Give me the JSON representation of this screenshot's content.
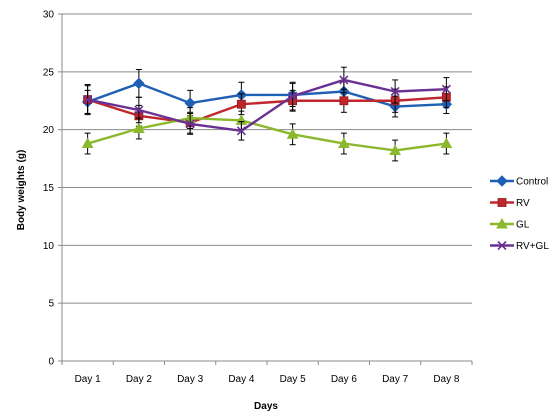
{
  "chart_data": {
    "type": "line",
    "ylabel": "Body weights (g)",
    "xlabel": "Days",
    "categories": [
      "Day 1",
      "Day 2",
      "Day 3",
      "Day 4",
      "Day 5",
      "Day 6",
      "Day 7",
      "Day 8"
    ],
    "ylim": [
      0,
      30
    ],
    "yticks": [
      0,
      5,
      10,
      15,
      20,
      25,
      30
    ],
    "grid": true,
    "legend_position": "right",
    "series": [
      {
        "name": "Control",
        "color": "#1f5fb4",
        "marker": "diamond",
        "values": [
          22.4,
          24.0,
          22.3,
          23.0,
          23.0,
          23.3,
          22.0,
          22.2
        ],
        "errors": [
          1.0,
          1.2,
          1.1,
          1.1,
          1.0,
          0.9,
          0.9,
          0.8
        ]
      },
      {
        "name": "RV",
        "color": "#c0272d",
        "marker": "square",
        "values": [
          22.6,
          21.2,
          20.6,
          22.2,
          22.5,
          22.5,
          22.5,
          22.8
        ],
        "errors": [
          1.2,
          0.9,
          0.9,
          0.9,
          0.9,
          1.0,
          1.0,
          0.9
        ]
      },
      {
        "name": "GL",
        "color": "#8cb82e",
        "marker": "triangle",
        "values": [
          18.8,
          20.1,
          21.0,
          20.8,
          19.6,
          18.8,
          18.2,
          18.8
        ],
        "errors": [
          0.9,
          0.9,
          0.9,
          0.8,
          0.9,
          0.9,
          0.9,
          0.9
        ]
      },
      {
        "name": "RV+GL",
        "color": "#6a3193",
        "marker": "x",
        "values": [
          22.6,
          21.7,
          20.5,
          19.9,
          22.9,
          24.3,
          23.3,
          23.5
        ],
        "errors": [
          1.3,
          1.1,
          0.9,
          0.8,
          1.2,
          1.1,
          1.0,
          1.0
        ]
      }
    ]
  }
}
